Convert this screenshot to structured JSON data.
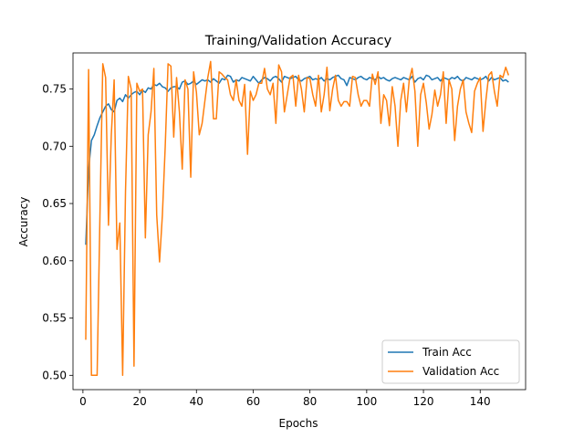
{
  "chart_data": {
    "type": "line",
    "title": "Training/Validation Accuracy",
    "xlabel": "Epochs",
    "ylabel": "Accuracy",
    "xlim": [
      -3.5,
      156
    ],
    "ylim": [
      0.4875,
      0.7815
    ],
    "x_ticks": [
      0,
      20,
      40,
      60,
      80,
      100,
      120,
      140
    ],
    "y_ticks": [
      0.5,
      0.55,
      0.6,
      0.65,
      0.7,
      0.75
    ],
    "y_tick_labels": [
      "0.50",
      "0.55",
      "0.60",
      "0.65",
      "0.70",
      "0.75"
    ],
    "legend_position": "lower-right",
    "grid": false,
    "series": [
      {
        "name": "Train Acc",
        "color": "#1f77b4",
        "x": [
          1,
          2,
          3,
          4,
          5,
          6,
          7,
          8,
          9,
          10,
          11,
          12,
          13,
          14,
          15,
          16,
          17,
          18,
          19,
          20,
          21,
          22,
          23,
          24,
          25,
          26,
          27,
          28,
          29,
          30,
          31,
          32,
          33,
          34,
          35,
          36,
          37,
          38,
          39,
          40,
          41,
          42,
          43,
          44,
          45,
          46,
          47,
          48,
          49,
          50,
          51,
          52,
          53,
          54,
          55,
          56,
          57,
          58,
          59,
          60,
          61,
          62,
          63,
          64,
          65,
          66,
          67,
          68,
          69,
          70,
          71,
          72,
          73,
          74,
          75,
          76,
          77,
          78,
          79,
          80,
          81,
          82,
          83,
          84,
          85,
          86,
          87,
          88,
          89,
          90,
          91,
          92,
          93,
          94,
          95,
          96,
          97,
          98,
          99,
          100,
          101,
          102,
          103,
          104,
          105,
          106,
          107,
          108,
          109,
          110,
          111,
          112,
          113,
          114,
          115,
          116,
          117,
          118,
          119,
          120,
          121,
          122,
          123,
          124,
          125,
          126,
          127,
          128,
          129,
          130,
          131,
          132,
          133,
          134,
          135,
          136,
          137,
          138,
          139,
          140,
          141,
          142,
          143,
          144,
          145,
          146,
          147,
          148,
          149,
          150
        ],
        "values": [
          0.614,
          0.68,
          0.705,
          0.71,
          0.718,
          0.725,
          0.73,
          0.735,
          0.737,
          0.732,
          0.73,
          0.74,
          0.742,
          0.739,
          0.745,
          0.742,
          0.745,
          0.747,
          0.748,
          0.745,
          0.749,
          0.747,
          0.751,
          0.75,
          0.754,
          0.753,
          0.755,
          0.752,
          0.751,
          0.748,
          0.751,
          0.752,
          0.752,
          0.75,
          0.756,
          0.757,
          0.754,
          0.755,
          0.757,
          0.754,
          0.756,
          0.758,
          0.757,
          0.758,
          0.756,
          0.759,
          0.757,
          0.755,
          0.759,
          0.758,
          0.762,
          0.761,
          0.756,
          0.758,
          0.757,
          0.76,
          0.759,
          0.758,
          0.757,
          0.761,
          0.758,
          0.755,
          0.758,
          0.76,
          0.759,
          0.757,
          0.76,
          0.761,
          0.759,
          0.756,
          0.761,
          0.76,
          0.759,
          0.76,
          0.761,
          0.758,
          0.757,
          0.759,
          0.76,
          0.761,
          0.758,
          0.759,
          0.758,
          0.76,
          0.757,
          0.759,
          0.758,
          0.76,
          0.761,
          0.762,
          0.759,
          0.758,
          0.753,
          0.76,
          0.759,
          0.758,
          0.76,
          0.761,
          0.759,
          0.758,
          0.76,
          0.759,
          0.758,
          0.761,
          0.759,
          0.76,
          0.758,
          0.757,
          0.759,
          0.76,
          0.759,
          0.758,
          0.76,
          0.759,
          0.758,
          0.761,
          0.756,
          0.759,
          0.76,
          0.758,
          0.762,
          0.761,
          0.758,
          0.759,
          0.76,
          0.757,
          0.76,
          0.759,
          0.758,
          0.76,
          0.759,
          0.761,
          0.758,
          0.757,
          0.76,
          0.759,
          0.758,
          0.76,
          0.759,
          0.758,
          0.759,
          0.761,
          0.757,
          0.76,
          0.758,
          0.759,
          0.76,
          0.757,
          0.758,
          0.756
        ]
      },
      {
        "name": "Validation Acc",
        "color": "#ff7f0e",
        "x": [
          1,
          2,
          3,
          4,
          5,
          6,
          7,
          8,
          9,
          10,
          11,
          12,
          13,
          14,
          15,
          16,
          17,
          18,
          19,
          20,
          21,
          22,
          23,
          24,
          25,
          26,
          27,
          28,
          29,
          30,
          31,
          32,
          33,
          34,
          35,
          36,
          37,
          38,
          39,
          40,
          41,
          42,
          43,
          44,
          45,
          46,
          47,
          48,
          49,
          50,
          51,
          52,
          53,
          54,
          55,
          56,
          57,
          58,
          59,
          60,
          61,
          62,
          63,
          64,
          65,
          66,
          67,
          68,
          69,
          70,
          71,
          72,
          73,
          74,
          75,
          76,
          77,
          78,
          79,
          80,
          81,
          82,
          83,
          84,
          85,
          86,
          87,
          88,
          89,
          90,
          91,
          92,
          93,
          94,
          95,
          96,
          97,
          98,
          99,
          100,
          101,
          102,
          103,
          104,
          105,
          106,
          107,
          108,
          109,
          110,
          111,
          112,
          113,
          114,
          115,
          116,
          117,
          118,
          119,
          120,
          121,
          122,
          123,
          124,
          125,
          126,
          127,
          128,
          129,
          130,
          131,
          132,
          133,
          134,
          135,
          136,
          137,
          138,
          139,
          140,
          141,
          142,
          143,
          144,
          145,
          146,
          147,
          148,
          149,
          150
        ],
        "values": [
          0.531,
          0.767,
          0.5,
          0.5,
          0.5,
          0.64,
          0.772,
          0.76,
          0.631,
          0.71,
          0.758,
          0.61,
          0.633,
          0.5,
          0.66,
          0.761,
          0.75,
          0.508,
          0.755,
          0.748,
          0.75,
          0.62,
          0.71,
          0.73,
          0.768,
          0.64,
          0.599,
          0.64,
          0.7,
          0.772,
          0.77,
          0.708,
          0.76,
          0.73,
          0.68,
          0.758,
          0.75,
          0.673,
          0.765,
          0.747,
          0.71,
          0.72,
          0.74,
          0.76,
          0.774,
          0.724,
          0.724,
          0.765,
          0.763,
          0.76,
          0.758,
          0.745,
          0.74,
          0.758,
          0.74,
          0.735,
          0.754,
          0.693,
          0.748,
          0.74,
          0.745,
          0.755,
          0.755,
          0.768,
          0.75,
          0.745,
          0.755,
          0.72,
          0.771,
          0.765,
          0.73,
          0.745,
          0.76,
          0.762,
          0.735,
          0.762,
          0.75,
          0.73,
          0.76,
          0.759,
          0.745,
          0.735,
          0.762,
          0.73,
          0.745,
          0.769,
          0.731,
          0.75,
          0.762,
          0.74,
          0.735,
          0.739,
          0.739,
          0.735,
          0.761,
          0.76,
          0.745,
          0.735,
          0.74,
          0.74,
          0.735,
          0.763,
          0.754,
          0.765,
          0.72,
          0.745,
          0.74,
          0.718,
          0.752,
          0.735,
          0.7,
          0.74,
          0.755,
          0.73,
          0.758,
          0.768,
          0.748,
          0.7,
          0.745,
          0.755,
          0.738,
          0.715,
          0.728,
          0.749,
          0.735,
          0.745,
          0.765,
          0.72,
          0.758,
          0.75,
          0.705,
          0.735,
          0.75,
          0.758,
          0.73,
          0.72,
          0.712,
          0.748,
          0.755,
          0.76,
          0.713,
          0.74,
          0.762,
          0.765,
          0.748,
          0.735,
          0.762,
          0.76,
          0.769,
          0.762
        ]
      }
    ]
  }
}
